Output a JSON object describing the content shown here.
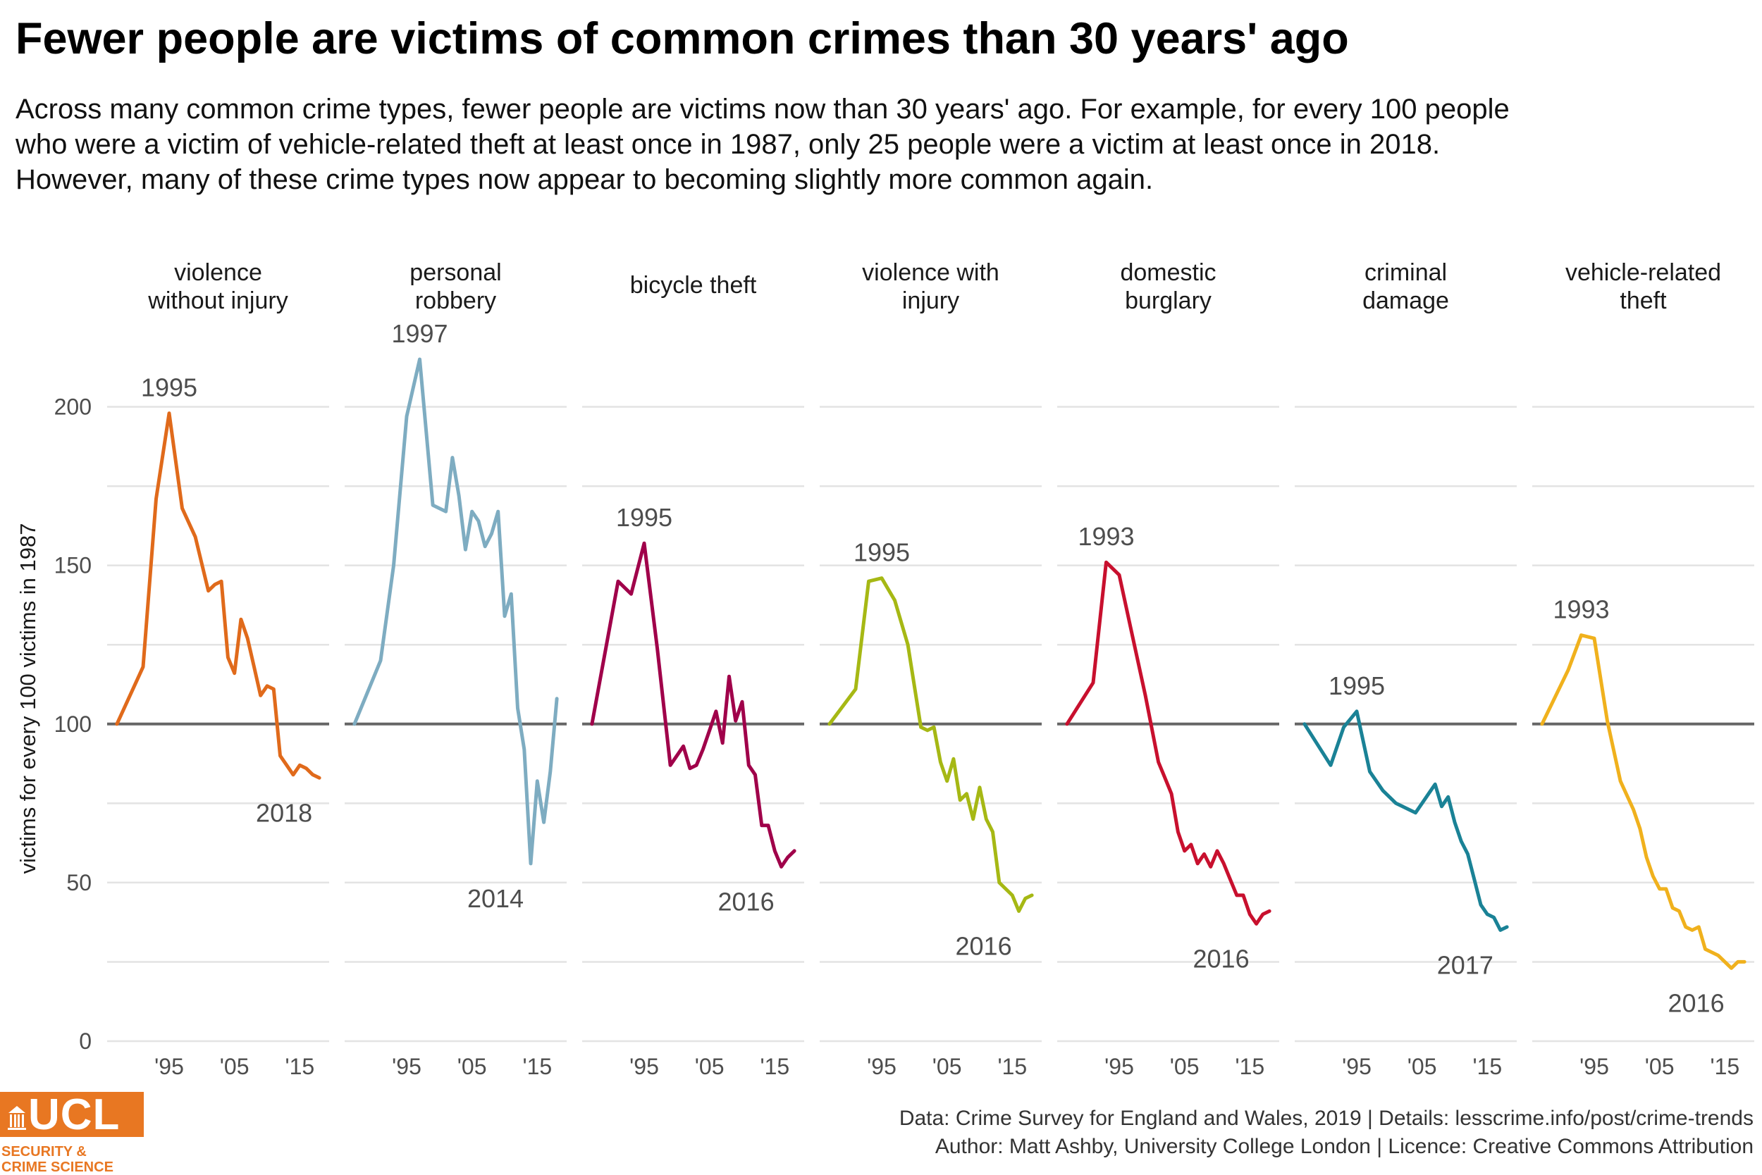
{
  "title": "Fewer people are victims of common crimes than 30 years' ago",
  "subtitle": "Across many common crime types, fewer people are victims now than 30 years' ago. For example, for every 100 people who were a victim of vehicle-related theft at least once in 1987, only 25 people were a victim at least once in 2018. However, many of these crime types now appear to becoming slightly more common again.",
  "caption": {
    "line1": "Data: Crime Survey for England and Wales, 2019 |  Details: lesscrime.info/post/crime-trends",
    "line2": "Author: Matt Ashby, University College London |  Licence: Creative Commons Attribution"
  },
  "logo": {
    "text": "UCL",
    "subtitle_line1": "SECURITY &",
    "subtitle_line2": "CRIME SCIENCE",
    "color": "#e87722"
  },
  "chart_data": {
    "type": "line",
    "facet": true,
    "ylabel": "victims for every 100 victims in 1987",
    "xlabel": "",
    "ylim": [
      0,
      225
    ],
    "yticks": [
      0,
      50,
      100,
      150,
      200
    ],
    "xlim": [
      1985.5,
      2019.5
    ],
    "xticks": [
      1995,
      2005,
      2015
    ],
    "xtick_labels": [
      "'95",
      "'05",
      "'15"
    ],
    "reference_line": 100,
    "grid": "horizontal",
    "facets": [
      {
        "name": "violence\nwithout injury",
        "color": "#e06a1b",
        "x": [
          1987,
          1991,
          1993,
          1995,
          1997,
          1999,
          2001,
          2002,
          2003,
          2004,
          2005,
          2006,
          2007,
          2008,
          2009,
          2010,
          2011,
          2012,
          2013,
          2014,
          2015,
          2016,
          2017,
          2018
        ],
        "y": [
          100,
          118,
          171,
          198,
          168,
          159,
          142,
          144,
          145,
          121,
          116,
          133,
          127,
          118,
          109,
          112,
          111,
          90,
          87,
          84,
          87,
          86,
          84,
          83
        ],
        "peak": {
          "x": 1995,
          "label": "1995"
        },
        "end": {
          "x": 2018,
          "label": "2018"
        }
      },
      {
        "name": "personal\nrobbery",
        "color": "#7eacc1",
        "x": [
          1987,
          1991,
          1993,
          1995,
          1997,
          1999,
          2001,
          2002,
          2003,
          2004,
          2005,
          2006,
          2007,
          2008,
          2009,
          2010,
          2011,
          2012,
          2013,
          2014,
          2015,
          2016,
          2017,
          2018
        ],
        "y": [
          100,
          120,
          150,
          197,
          215,
          169,
          167,
          184,
          172,
          155,
          167,
          164,
          156,
          160,
          167,
          134,
          141,
          105,
          92,
          56,
          82,
          69,
          85,
          108
        ],
        "peak": {
          "x": 1997,
          "label": "1997"
        },
        "end": {
          "x": 2014,
          "label": "2014"
        }
      },
      {
        "name": "bicycle theft",
        "color": "#a0004a",
        "x": [
          1987,
          1991,
          1993,
          1995,
          1997,
          1999,
          2001,
          2002,
          2003,
          2004,
          2005,
          2006,
          2007,
          2008,
          2009,
          2010,
          2011,
          2012,
          2013,
          2014,
          2015,
          2016,
          2017,
          2018
        ],
        "y": [
          100,
          145,
          141,
          157,
          124,
          87,
          93,
          86,
          87,
          92,
          98,
          104,
          94,
          115,
          101,
          107,
          87,
          84,
          68,
          68,
          60,
          55,
          58,
          60
        ],
        "peak": {
          "x": 1995,
          "label": "1995"
        },
        "end": {
          "x": 2016,
          "label": "2016"
        }
      },
      {
        "name": "violence with\ninjury",
        "color": "#a6b814",
        "x": [
          1987,
          1991,
          1993,
          1995,
          1997,
          1999,
          2001,
          2002,
          2003,
          2004,
          2005,
          2006,
          2007,
          2008,
          2009,
          2010,
          2011,
          2012,
          2013,
          2014,
          2015,
          2016,
          2017,
          2018
        ],
        "y": [
          100,
          111,
          145,
          146,
          139,
          125,
          99,
          98,
          99,
          88,
          82,
          89,
          76,
          78,
          70,
          80,
          70,
          66,
          50,
          48,
          46,
          41,
          45,
          46
        ],
        "peak": {
          "x": 1995,
          "label": "1995"
        },
        "end": {
          "x": 2016,
          "label": "2016"
        }
      },
      {
        "name": "domestic\nburglary",
        "color": "#c8102e",
        "x": [
          1987,
          1991,
          1993,
          1995,
          1997,
          1999,
          2001,
          2002,
          2003,
          2004,
          2005,
          2006,
          2007,
          2008,
          2009,
          2010,
          2011,
          2012,
          2013,
          2014,
          2015,
          2016,
          2017,
          2018
        ],
        "y": [
          100,
          113,
          151,
          147,
          128,
          109,
          88,
          83,
          78,
          66,
          60,
          62,
          56,
          59,
          55,
          60,
          56,
          51,
          46,
          46,
          40,
          37,
          40,
          41
        ],
        "peak": {
          "x": 1993,
          "label": "1993"
        },
        "end": {
          "x": 2016,
          "label": "2016"
        }
      },
      {
        "name": "criminal\ndamage",
        "color": "#1a8296",
        "x": [
          1987,
          1991,
          1993,
          1995,
          1997,
          1999,
          2001,
          2002,
          2003,
          2004,
          2005,
          2006,
          2007,
          2008,
          2009,
          2010,
          2011,
          2012,
          2013,
          2014,
          2015,
          2016,
          2017,
          2018
        ],
        "y": [
          100,
          87,
          99,
          104,
          85,
          79,
          75,
          74,
          73,
          72,
          75,
          78,
          81,
          74,
          77,
          69,
          63,
          59,
          51,
          43,
          40,
          39,
          35,
          36
        ],
        "peak": {
          "x": 1995,
          "label": "1995"
        },
        "end": {
          "x": 2017,
          "label": "2017"
        }
      },
      {
        "name": "vehicle-related\ntheft",
        "color": "#f0b11d",
        "x": [
          1987,
          1991,
          1993,
          1995,
          1997,
          1999,
          2001,
          2002,
          2003,
          2004,
          2005,
          2006,
          2007,
          2008,
          2009,
          2010,
          2011,
          2012,
          2013,
          2014,
          2015,
          2016,
          2017,
          2018
        ],
        "y": [
          100,
          117,
          128,
          127,
          101,
          82,
          73,
          67,
          58,
          52,
          48,
          48,
          42,
          41,
          36,
          35,
          36,
          29,
          28,
          27,
          25,
          23,
          25,
          25
        ],
        "peak": {
          "x": 1993,
          "label": "1993"
        },
        "end": {
          "x": 2016,
          "label": "2016"
        }
      }
    ]
  }
}
